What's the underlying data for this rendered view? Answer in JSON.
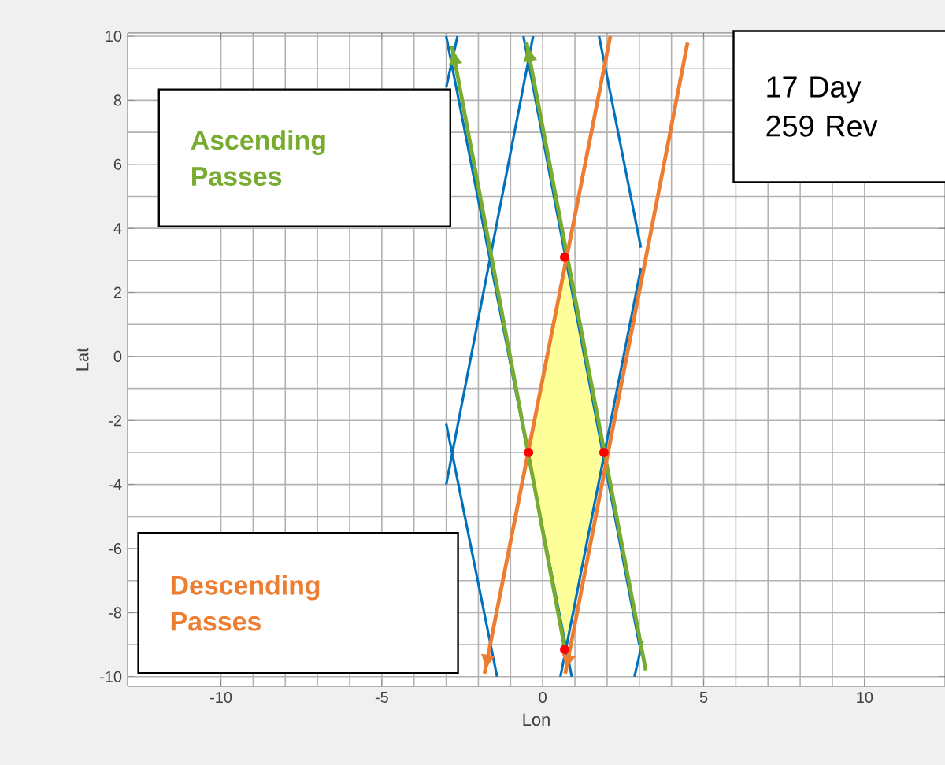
{
  "chart_data": {
    "type": "line",
    "xlabel": "Lon",
    "ylabel": "Lat",
    "xlim": [
      -12.9,
      12.5
    ],
    "ylim": [
      -10.3,
      10.1
    ],
    "xticks": [
      -10,
      -5,
      0,
      5,
      10
    ],
    "yticks": [
      -10,
      -8,
      -6,
      -4,
      -2,
      0,
      2,
      4,
      6,
      8,
      10
    ],
    "grid": true,
    "annotations": [
      "Ascending Passes",
      "Descending Passes",
      "17 Day 259 Rev"
    ],
    "series": [
      {
        "type": "area",
        "color": "#ffff99",
        "x": [
          0.68,
          -0.44,
          0.68,
          1.9,
          0.68
        ],
        "values": [
          3.1,
          -3.0,
          -9.15,
          -3.0,
          3.1
        ]
      },
      {
        "color": "#0072bd",
        "x": [
          -3.0,
          -2.65,
          null,
          -3.0,
          0.9,
          null,
          -3.0,
          -0.3,
          null,
          -3.0,
          -1.42,
          null,
          -0.6,
          3.0,
          null,
          0.55,
          3.05,
          null,
          1.75,
          3.05,
          null,
          2.85,
          3.1
        ],
        "values": [
          8.4,
          10,
          null,
          10,
          -10,
          null,
          -4.0,
          10,
          null,
          -2.1,
          -10,
          null,
          10,
          -9.0,
          null,
          -10,
          2.75,
          null,
          10,
          3.4,
          null,
          -10,
          -8.9
        ]
      },
      {
        "color": "#77ac30",
        "x": [
          0.68,
          -2.82
        ],
        "values": [
          -9.1,
          9.7
        ]
      },
      {
        "color": "#77ac30",
        "x": [
          3.2,
          -0.5
        ],
        "values": [
          -9.8,
          9.8
        ]
      },
      {
        "color": "#ed7d31",
        "x": [
          2.1,
          -1.81
        ],
        "values": [
          10,
          -9.9
        ]
      },
      {
        "color": "#ed7d31",
        "x": [
          4.5,
          0.7
        ],
        "values": [
          9.8,
          -9.9
        ]
      },
      {
        "type": "scatter",
        "color": "#ff0000",
        "x": [
          0.68,
          -0.44,
          1.9,
          0.68
        ],
        "values": [
          3.1,
          -3.0,
          -3.0,
          -9.15
        ]
      }
    ]
  }
}
